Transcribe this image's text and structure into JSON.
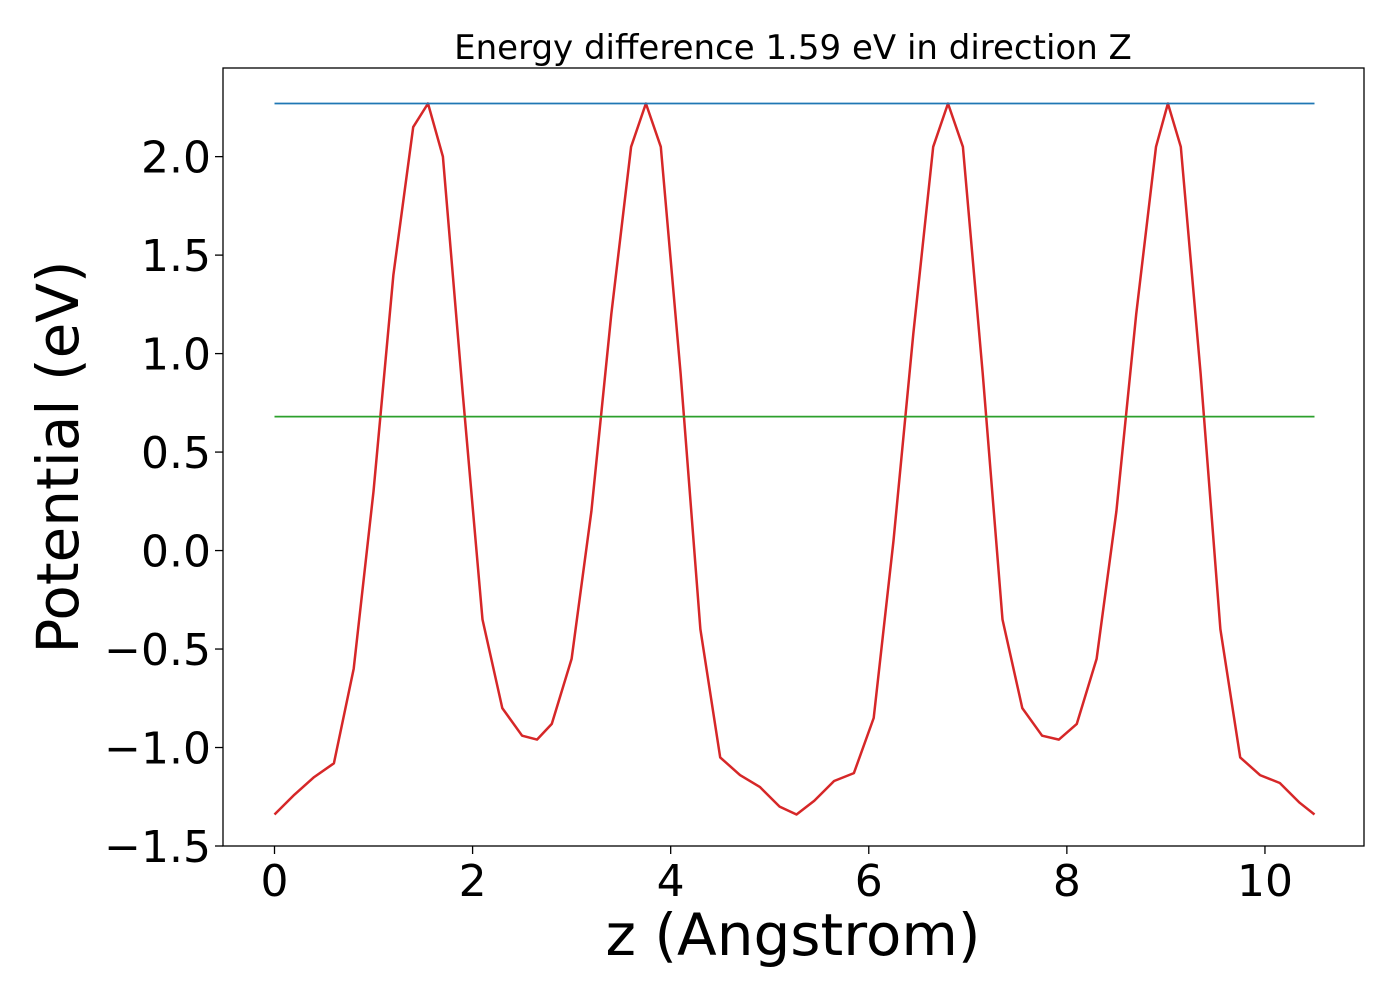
{
  "chart_data": {
    "type": "line",
    "title": "Energy difference 1.59 eV in direction Z",
    "xlabel": "z (Angstrom)",
    "ylabel": "Potential (eV)",
    "xlim": [
      -0.52,
      11.0
    ],
    "ylim": [
      -1.5,
      2.45
    ],
    "xticks": [
      0,
      2,
      4,
      6,
      8,
      10
    ],
    "xtick_labels": [
      "0",
      "2",
      "4",
      "6",
      "8",
      "10"
    ],
    "yticks": [
      -1.5,
      -1.0,
      -0.5,
      0.0,
      0.5,
      1.0,
      1.5,
      2.0
    ],
    "ytick_labels": [
      "−1.5",
      "−1.0",
      "−0.5",
      "0.0",
      "0.5",
      "1.0",
      "1.5",
      "2.0"
    ],
    "grid": false,
    "series": [
      {
        "color": "#d62728",
        "x": [
          0.0,
          0.2,
          0.4,
          0.6,
          0.8,
          1.0,
          1.2,
          1.4,
          1.55,
          1.7,
          1.9,
          2.1,
          2.3,
          2.5,
          2.65,
          2.8,
          3.0,
          3.2,
          3.4,
          3.6,
          3.75,
          3.9,
          4.1,
          4.3,
          4.5,
          4.7,
          4.9,
          5.1,
          5.27,
          5.45,
          5.65,
          5.85,
          6.05,
          6.25,
          6.45,
          6.65,
          6.8,
          6.95,
          7.15,
          7.35,
          7.55,
          7.75,
          7.92,
          8.1,
          8.3,
          8.5,
          8.7,
          8.9,
          9.02,
          9.15,
          9.35,
          9.55,
          9.75,
          9.95,
          10.15,
          10.35,
          10.5
        ],
        "y": [
          -1.34,
          -1.24,
          -1.15,
          -1.08,
          -0.6,
          0.3,
          1.4,
          2.15,
          2.27,
          2.0,
          0.8,
          -0.35,
          -0.8,
          -0.94,
          -0.96,
          -0.88,
          -0.55,
          0.2,
          1.2,
          2.05,
          2.27,
          2.05,
          0.9,
          -0.4,
          -1.05,
          -1.14,
          -1.2,
          -1.3,
          -1.34,
          -1.27,
          -1.17,
          -1.13,
          -0.85,
          0.05,
          1.1,
          2.05,
          2.27,
          2.05,
          0.9,
          -0.35,
          -0.8,
          -0.94,
          -0.96,
          -0.88,
          -0.55,
          0.2,
          1.2,
          2.05,
          2.27,
          2.05,
          0.9,
          -0.4,
          -1.05,
          -1.14,
          -1.18,
          -1.28,
          -1.34
        ]
      },
      {
        "color": "#1f77b4",
        "x": [
          0.0,
          10.5
        ],
        "y": [
          2.27,
          2.27
        ]
      },
      {
        "color": "#2ca02c",
        "x": [
          0.0,
          10.5
        ],
        "y": [
          0.68,
          0.68
        ]
      }
    ]
  }
}
